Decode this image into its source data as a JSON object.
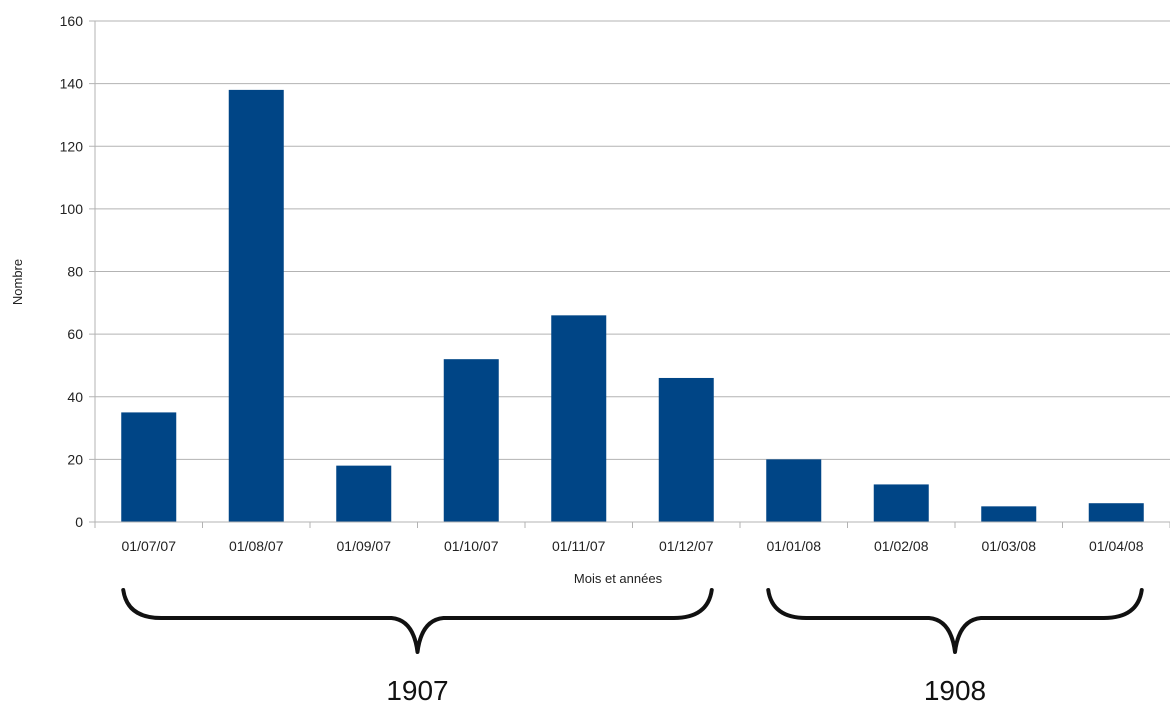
{
  "chart_data": {
    "type": "bar",
    "categories": [
      "01/07/07",
      "01/08/07",
      "01/09/07",
      "01/10/07",
      "01/11/07",
      "01/12/07",
      "01/01/08",
      "01/02/08",
      "01/03/08",
      "01/04/08"
    ],
    "values": [
      35,
      138,
      18,
      52,
      66,
      46,
      20,
      12,
      5,
      6
    ],
    "xlabel": "Mois et années",
    "ylabel": "Nombre",
    "ylim": [
      0,
      160
    ],
    "yticks": [
      0,
      20,
      40,
      60,
      80,
      100,
      120,
      140,
      160
    ],
    "grid": true,
    "bar_color": "#004586",
    "groups": [
      {
        "label": "1907",
        "from": "01/07/07",
        "to": "01/12/07"
      },
      {
        "label": "1908",
        "from": "01/01/08",
        "to": "01/04/08"
      }
    ]
  }
}
